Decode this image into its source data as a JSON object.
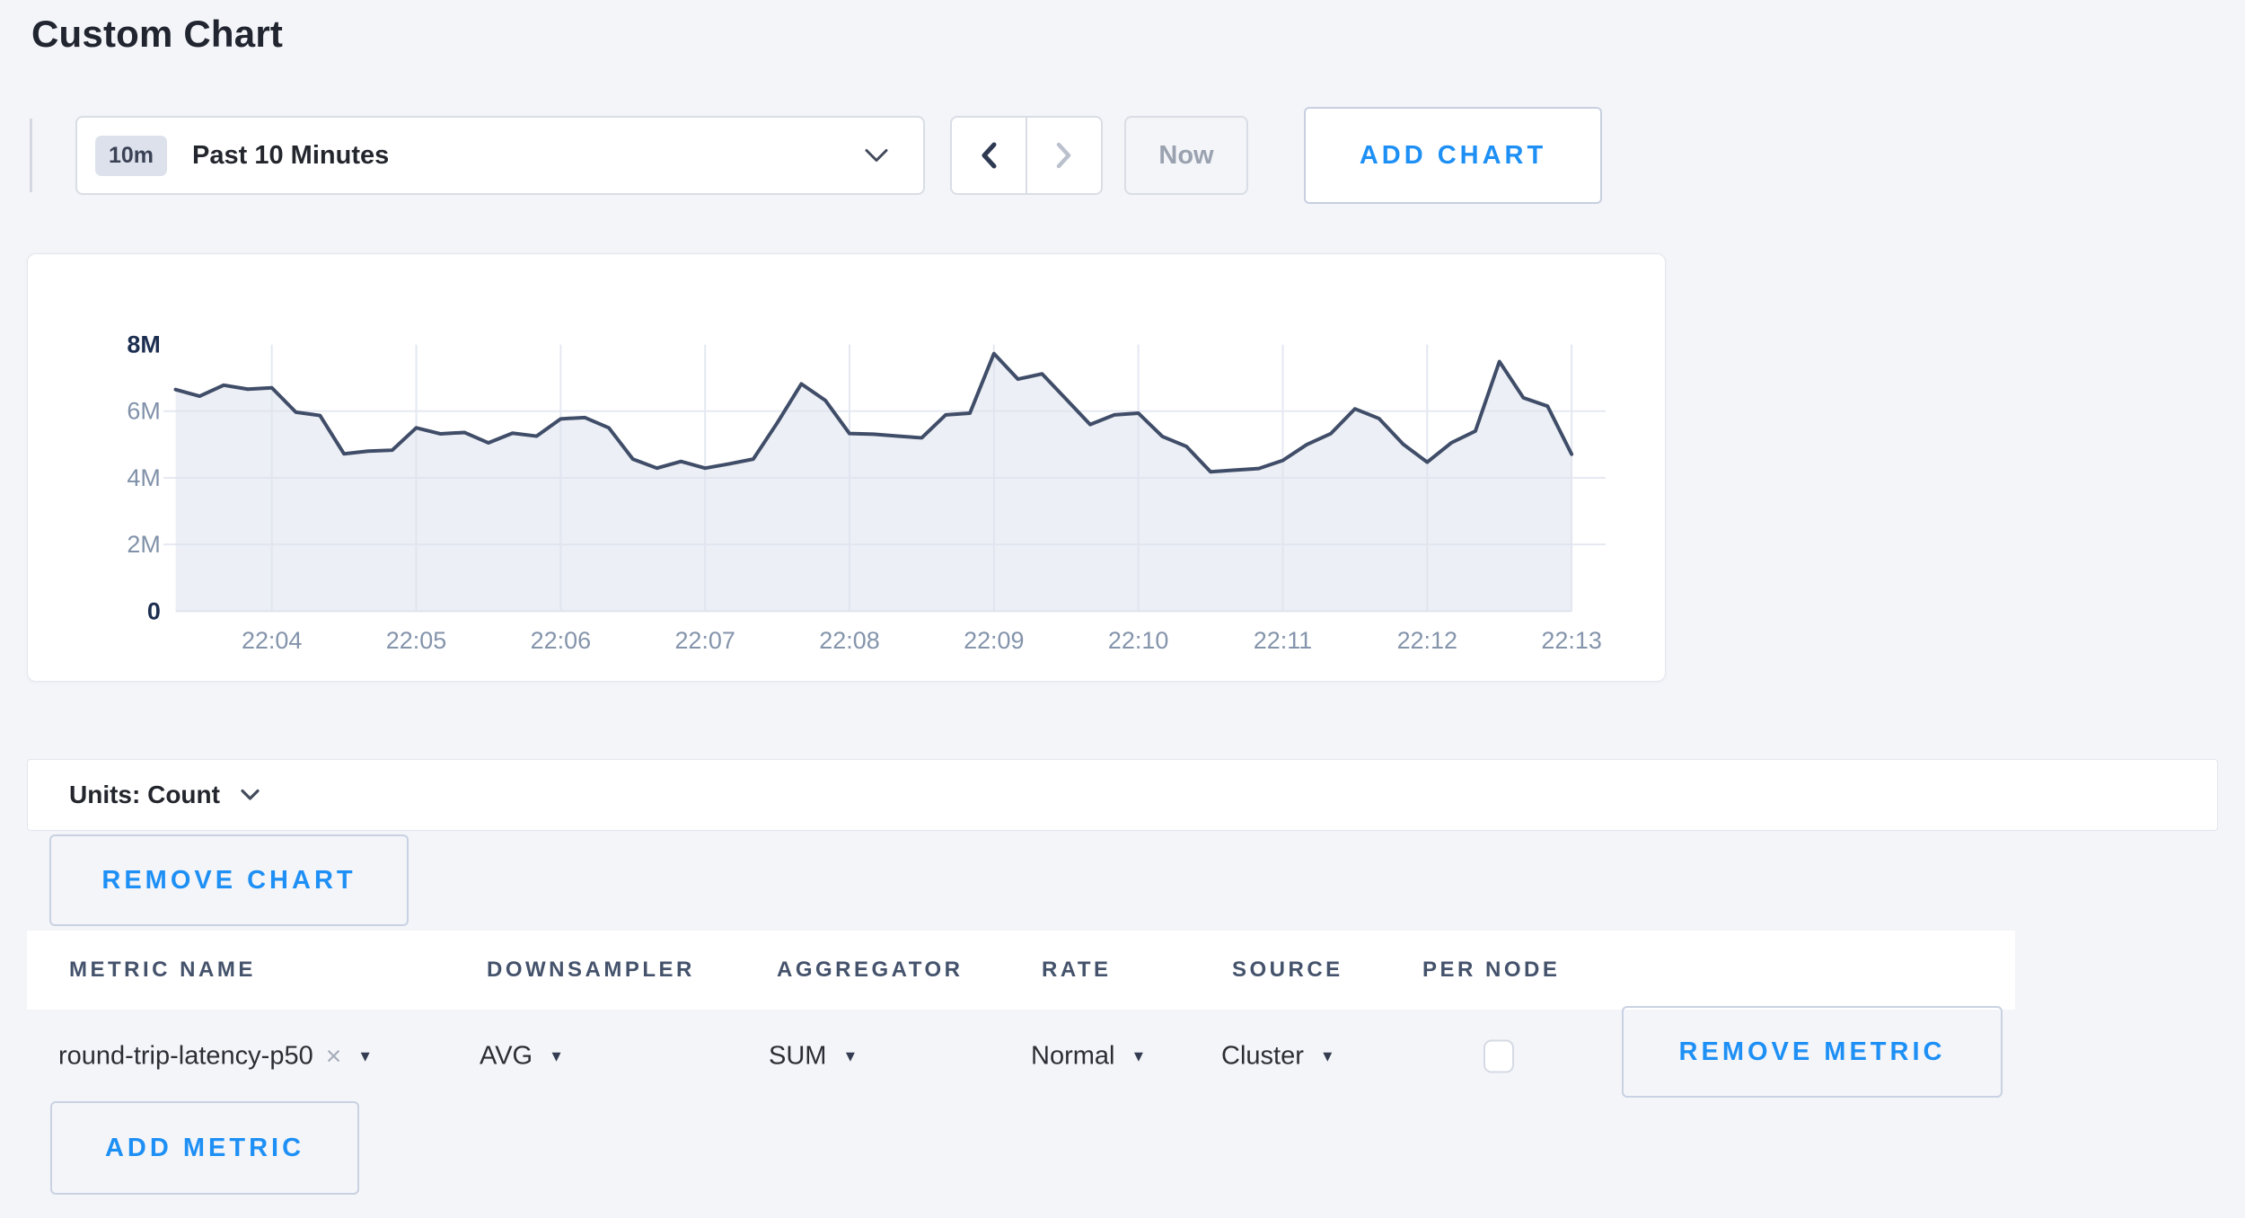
{
  "page": {
    "title": "Custom Chart",
    "background": "#f4f5f9",
    "accent_color": "#1e90f5"
  },
  "toolbar": {
    "time_range": {
      "badge": "10m",
      "label": "Past 10 Minutes"
    },
    "now_label": "Now",
    "add_chart_label": "ADD CHART"
  },
  "units_bar": {
    "label": "Units: Count"
  },
  "buttons": {
    "remove_chart": "REMOVE CHART",
    "remove_metric": "REMOVE METRIC",
    "add_metric": "ADD METRIC"
  },
  "icons": {
    "close": "×",
    "caret_down": "▼"
  },
  "metrics_table": {
    "columns": [
      "METRIC NAME",
      "DOWNSAMPLER",
      "AGGREGATOR",
      "RATE",
      "SOURCE",
      "PER NODE"
    ],
    "rows": [
      {
        "metric_name": "round-trip-latency-p50",
        "downsampler": "AVG",
        "aggregator": "SUM",
        "rate": "Normal",
        "source": "Cluster",
        "per_node_checked": false
      }
    ]
  },
  "chart_data": {
    "type": "area",
    "title": "",
    "xlabel": "",
    "ylabel": "",
    "unit": "count",
    "value_scale": 1000000,
    "ylim": [
      0,
      8000000
    ],
    "grid": true,
    "legend": false,
    "line_color": "#404d68",
    "fill_color": "rgba(221,226,237,0.55)",
    "grid_color": "#e6e9f1",
    "axis_strong_color": "#1d2f51",
    "axis_weak_color": "#8091a9",
    "y_ticks": [
      {
        "label": "8M",
        "value": 8,
        "strong": true
      },
      {
        "label": "6M",
        "value": 6,
        "strong": false
      },
      {
        "label": "4M",
        "value": 4,
        "strong": false
      },
      {
        "label": "2M",
        "value": 2,
        "strong": false
      },
      {
        "label": "0",
        "value": 0,
        "strong": true
      }
    ],
    "x_tick_labels": [
      "22:04",
      "22:05",
      "22:06",
      "22:07",
      "22:08",
      "22:09",
      "22:10",
      "22:11",
      "22:12",
      "22:13"
    ],
    "points": [
      [
        "22:03:20",
        6.65
      ],
      [
        "22:03:30",
        6.45
      ],
      [
        "22:03:40",
        6.78
      ],
      [
        "22:03:50",
        6.66
      ],
      [
        "22:04:00",
        6.7
      ],
      [
        "22:04:10",
        5.97
      ],
      [
        "22:04:20",
        5.87
      ],
      [
        "22:04:30",
        4.72
      ],
      [
        "22:04:40",
        4.8
      ],
      [
        "22:04:50",
        4.83
      ],
      [
        "22:05:00",
        5.5
      ],
      [
        "22:05:10",
        5.32
      ],
      [
        "22:05:20",
        5.36
      ],
      [
        "22:05:30",
        5.05
      ],
      [
        "22:05:40",
        5.34
      ],
      [
        "22:05:50",
        5.25
      ],
      [
        "22:06:00",
        5.77
      ],
      [
        "22:06:10",
        5.81
      ],
      [
        "22:06:20",
        5.5
      ],
      [
        "22:06:30",
        4.56
      ],
      [
        "22:06:40",
        4.29
      ],
      [
        "22:06:50",
        4.49
      ],
      [
        "22:07:00",
        4.29
      ],
      [
        "22:07:10",
        4.42
      ],
      [
        "22:07:20",
        4.56
      ],
      [
        "22:07:30",
        5.65
      ],
      [
        "22:07:40",
        6.82
      ],
      [
        "22:07:50",
        6.32
      ],
      [
        "22:08:00",
        5.33
      ],
      [
        "22:08:10",
        5.31
      ],
      [
        "22:08:20",
        5.25
      ],
      [
        "22:08:30",
        5.2
      ],
      [
        "22:08:40",
        5.89
      ],
      [
        "22:08:50",
        5.94
      ],
      [
        "22:09:00",
        7.73
      ],
      [
        "22:09:10",
        6.96
      ],
      [
        "22:09:20",
        7.12
      ],
      [
        "22:09:30",
        6.36
      ],
      [
        "22:09:40",
        5.6
      ],
      [
        "22:09:50",
        5.89
      ],
      [
        "22:10:00",
        5.94
      ],
      [
        "22:10:10",
        5.24
      ],
      [
        "22:10:20",
        4.94
      ],
      [
        "22:10:30",
        4.18
      ],
      [
        "22:10:40",
        4.23
      ],
      [
        "22:10:50",
        4.28
      ],
      [
        "22:11:00",
        4.52
      ],
      [
        "22:11:10",
        5.0
      ],
      [
        "22:11:20",
        5.33
      ],
      [
        "22:11:30",
        6.07
      ],
      [
        "22:11:40",
        5.78
      ],
      [
        "22:11:50",
        5.01
      ],
      [
        "22:12:00",
        4.47
      ],
      [
        "22:12:10",
        5.05
      ],
      [
        "22:12:20",
        5.4
      ],
      [
        "22:12:30",
        7.49
      ],
      [
        "22:12:40",
        6.4
      ],
      [
        "22:12:50",
        6.15
      ],
      [
        "22:13:00",
        4.71
      ]
    ]
  }
}
